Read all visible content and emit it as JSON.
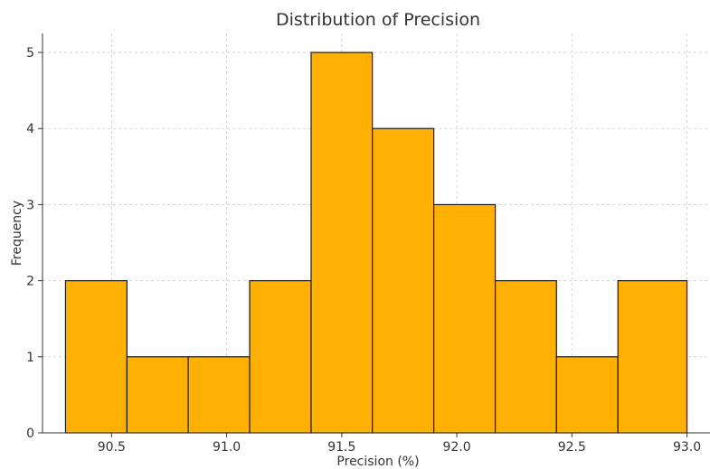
{
  "chart_data": {
    "type": "bar",
    "title": "Distribution of Precision",
    "xlabel": "Precision (%)",
    "ylabel": "Frequency",
    "bins": [
      {
        "start": 90.3,
        "end": 90.567,
        "count": 2
      },
      {
        "start": 90.567,
        "end": 90.833,
        "count": 1
      },
      {
        "start": 90.833,
        "end": 91.1,
        "count": 1
      },
      {
        "start": 91.1,
        "end": 91.367,
        "count": 2
      },
      {
        "start": 91.367,
        "end": 91.633,
        "count": 5
      },
      {
        "start": 91.633,
        "end": 91.9,
        "count": 4
      },
      {
        "start": 91.9,
        "end": 92.167,
        "count": 3
      },
      {
        "start": 92.167,
        "end": 92.433,
        "count": 2
      },
      {
        "start": 92.433,
        "end": 92.7,
        "count": 1
      },
      {
        "start": 92.7,
        "end": 93.0,
        "count": 2
      }
    ],
    "xticks": [
      "90.5",
      "91.0",
      "91.5",
      "92.0",
      "92.5",
      "93.0"
    ],
    "yticks": [
      "0",
      "1",
      "2",
      "3",
      "4",
      "5"
    ],
    "xlim": [
      90.2,
      93.1
    ],
    "ylim": [
      0,
      5.25
    ],
    "grid": true,
    "bar_color": "#ffb000",
    "edge_color": "#1a1a1a"
  }
}
